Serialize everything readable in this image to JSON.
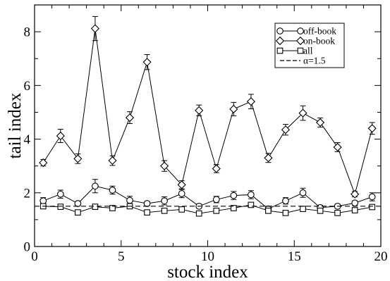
{
  "chart_data": {
    "type": "line",
    "title": "",
    "xlabel": "stock index",
    "ylabel": "tail index",
    "xlim": [
      0,
      20
    ],
    "ylim": [
      0,
      9
    ],
    "xticks": [
      "0",
      "5",
      "10",
      "15",
      "20"
    ],
    "yticks": [
      "0",
      "2",
      "4",
      "6",
      "8"
    ],
    "grid": false,
    "legend_position": "top-right",
    "x": [
      0.5,
      1.5,
      2.5,
      3.5,
      4.5,
      5.5,
      6.5,
      7.5,
      8.5,
      9.5,
      10.5,
      11.5,
      12.5,
      13.5,
      14.5,
      15.5,
      16.5,
      17.5,
      18.5,
      19.5
    ],
    "series": [
      {
        "name": "off-book",
        "marker": "circle",
        "color": "#000000",
        "values": [
          1.7,
          1.95,
          1.6,
          2.25,
          2.1,
          1.72,
          1.6,
          1.7,
          1.97,
          1.5,
          1.75,
          1.9,
          1.93,
          1.4,
          1.7,
          2.0,
          1.45,
          1.5,
          1.62,
          1.85
        ],
        "errors": [
          0.12,
          0.15,
          0.08,
          0.25,
          0.15,
          0.15,
          0.08,
          0.15,
          0.15,
          0.08,
          0.12,
          0.15,
          0.15,
          0.1,
          0.12,
          0.17,
          0.08,
          0.08,
          0.08,
          0.15
        ]
      },
      {
        "name": "on-book",
        "marker": "diamond",
        "color": "#000000",
        "values": [
          3.12,
          4.12,
          3.27,
          8.12,
          3.2,
          4.8,
          6.87,
          3.0,
          2.3,
          5.07,
          2.9,
          5.12,
          5.4,
          3.3,
          4.35,
          4.97,
          4.62,
          3.7,
          1.95,
          4.4
        ],
        "errors": [
          0.12,
          0.25,
          0.18,
          0.45,
          0.18,
          0.22,
          0.28,
          0.2,
          0.15,
          0.2,
          0.15,
          0.25,
          0.27,
          0.17,
          0.2,
          0.27,
          0.17,
          0.17,
          0.1,
          0.22
        ]
      },
      {
        "name": "all",
        "marker": "square",
        "color": "#000000",
        "values": [
          1.5,
          1.48,
          1.27,
          1.48,
          1.43,
          1.5,
          1.27,
          1.33,
          1.38,
          1.23,
          1.33,
          1.43,
          1.55,
          1.33,
          1.25,
          1.4,
          1.33,
          1.25,
          1.35,
          1.47
        ],
        "errors": [
          0.07,
          0.07,
          0.05,
          0.07,
          0.07,
          0.07,
          0.05,
          0.05,
          0.07,
          0.05,
          0.05,
          0.07,
          0.07,
          0.05,
          0.05,
          0.07,
          0.05,
          0.05,
          0.05,
          0.07
        ]
      },
      {
        "name": "α=1.5",
        "style": "dashed",
        "color": "#000000",
        "constant": 1.5
      }
    ]
  }
}
